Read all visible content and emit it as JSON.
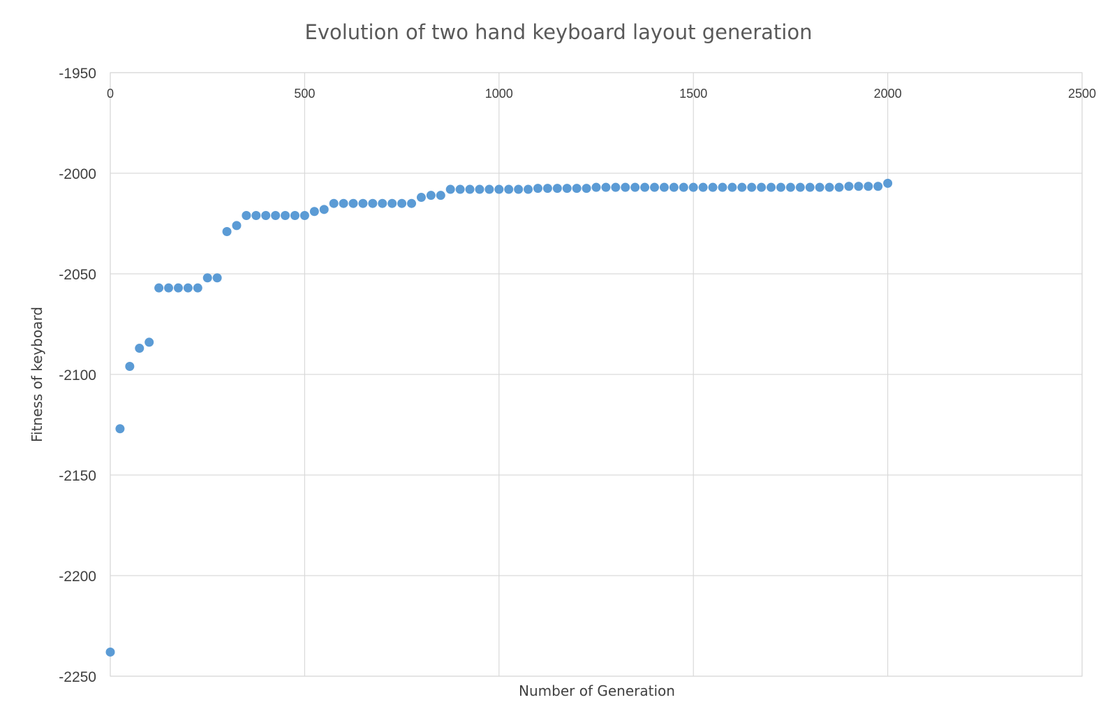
{
  "chart_data": {
    "type": "scatter",
    "title": "Evolution of two hand keyboard layout generation",
    "xlabel": "Number of Generation",
    "ylabel": "Fitness of keyboard",
    "xlim": [
      0,
      2500
    ],
    "ylim": [
      -2250,
      -1950
    ],
    "xticks": [
      "0",
      "500",
      "1000",
      "1500",
      "2000",
      "2500"
    ],
    "yticks": [
      "-1950",
      "-2000",
      "-2050",
      "-2100",
      "-2150",
      "-2200",
      "-2250"
    ],
    "grid": true,
    "x_axis_position": "top",
    "marker_color": "#5b9bd5",
    "series": [
      {
        "x": [
          0,
          25,
          50,
          75,
          100,
          125,
          150,
          175,
          200,
          225,
          250,
          275,
          300,
          325,
          350,
          375,
          400,
          425,
          450,
          475,
          500,
          525,
          550,
          575,
          600,
          625,
          650,
          675,
          700,
          725,
          750,
          775,
          800,
          825,
          850,
          875,
          900,
          925,
          950,
          975,
          1000,
          1025,
          1050,
          1075,
          1100,
          1125,
          1150,
          1175,
          1200,
          1225,
          1250,
          1275,
          1300,
          1325,
          1350,
          1375,
          1400,
          1425,
          1450,
          1475,
          1500,
          1525,
          1550,
          1575,
          1600,
          1625,
          1650,
          1675,
          1700,
          1725,
          1750,
          1775,
          1800,
          1825,
          1850,
          1875,
          1900,
          1925,
          1950,
          1975,
          2000
        ],
        "y": [
          -2238,
          -2127,
          -2096,
          -2087,
          -2084,
          -2057,
          -2057,
          -2057,
          -2057,
          -2057,
          -2052,
          -2052,
          -2029,
          -2026,
          -2021,
          -2021,
          -2021,
          -2021,
          -2021,
          -2021,
          -2021,
          -2019,
          -2018,
          -2015,
          -2015,
          -2015,
          -2015,
          -2015,
          -2015,
          -2015,
          -2015,
          -2015,
          -2012,
          -2011,
          -2011,
          -2008,
          -2008,
          -2008,
          -2008,
          -2008,
          -2008,
          -2008,
          -2008,
          -2008,
          -2007.5,
          -2007.5,
          -2007.5,
          -2007.5,
          -2007.5,
          -2007.5,
          -2007,
          -2007,
          -2007,
          -2007,
          -2007,
          -2007,
          -2007,
          -2007,
          -2007,
          -2007,
          -2007,
          -2007,
          -2007,
          -2007,
          -2007,
          -2007,
          -2007,
          -2007,
          -2007,
          -2007,
          -2007,
          -2007,
          -2007,
          -2007,
          -2007,
          -2007,
          -2006.5,
          -2006.5,
          -2006.5,
          -2006.5,
          -2005
        ]
      }
    ]
  }
}
